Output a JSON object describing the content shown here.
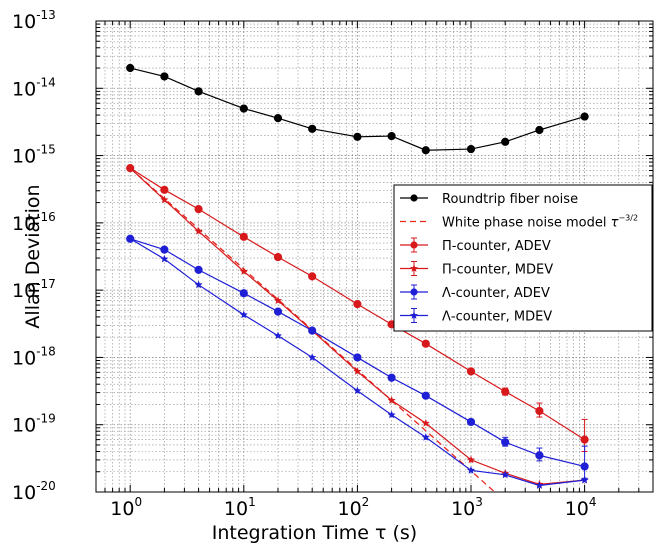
{
  "chart_data": {
    "type": "line",
    "xscale": "log",
    "yscale": "log",
    "xlim": [
      0.5,
      40000
    ],
    "ylim": [
      1e-20,
      1e-13
    ],
    "grid": true,
    "xlabel": "Integration Time τ (s)",
    "ylabel": "Allan Deviation",
    "legend_position": "center-right",
    "x_tick_labels": [
      {
        "value": 1,
        "base": "10",
        "exp": "0"
      },
      {
        "value": 10,
        "base": "10",
        "exp": "1"
      },
      {
        "value": 100,
        "base": "10",
        "exp": "2"
      },
      {
        "value": 1000,
        "base": "10",
        "exp": "3"
      },
      {
        "value": 10000,
        "base": "10",
        "exp": "4"
      }
    ],
    "y_tick_labels": [
      {
        "value": 1e-13,
        "base": "10",
        "exp": "-13"
      },
      {
        "value": 1e-14,
        "base": "10",
        "exp": "-14"
      },
      {
        "value": 1e-15,
        "base": "10",
        "exp": "-15"
      },
      {
        "value": 1e-16,
        "base": "10",
        "exp": "-16"
      },
      {
        "value": 1e-17,
        "base": "10",
        "exp": "-17"
      },
      {
        "value": 1e-18,
        "base": "10",
        "exp": "-18"
      },
      {
        "value": 1e-19,
        "base": "10",
        "exp": "-19"
      },
      {
        "value": 1e-20,
        "base": "10",
        "exp": "-20"
      }
    ],
    "series": [
      {
        "name": "Roundtrip fiber noise",
        "color": "#000000",
        "marker": "circle",
        "line": "solid",
        "x": [
          1,
          2,
          4,
          10,
          20,
          40,
          100,
          200,
          400,
          1000,
          2000,
          4000,
          10000
        ],
        "y": [
          2e-14,
          1.5e-14,
          9e-15,
          5e-15,
          3.6e-15,
          2.5e-15,
          1.9e-15,
          1.95e-15,
          1.2e-15,
          1.25e-15,
          1.6e-15,
          2.4e-15,
          3.8e-15
        ]
      },
      {
        "name": "White phase noise model τ^(-3/2)",
        "label_main": "White phase noise model ",
        "label_math": "τ",
        "label_exp": "−3/2",
        "color": "#e8261c",
        "marker": "none",
        "line": "dashed",
        "x": [
          1,
          10000
        ],
        "y": [
          6.5e-16,
          6.5e-22
        ]
      },
      {
        "name": "Π-counter, ADEV",
        "color": "#d7191c",
        "marker": "circle",
        "line": "solid",
        "x": [
          1,
          2,
          4,
          10,
          20,
          40,
          100,
          200,
          400,
          1000,
          2000,
          4000,
          10000
        ],
        "y": [
          6.5e-16,
          3.1e-16,
          1.6e-16,
          6.2e-17,
          3.1e-17,
          1.6e-17,
          6.2e-18,
          3.1e-18,
          1.6e-18,
          6.2e-19,
          3.1e-19,
          1.6e-19,
          6e-20
        ],
        "err_low": [
          6.5e-16,
          3.1e-16,
          1.6e-16,
          6.2e-17,
          3.1e-17,
          1.6e-17,
          6.2e-18,
          3.1e-18,
          1.6e-18,
          5.9e-19,
          2.75e-19,
          1.3e-19,
          4e-20
        ],
        "err_high": [
          6.5e-16,
          3.1e-16,
          1.6e-16,
          6.2e-17,
          3.1e-17,
          1.6e-17,
          6.2e-18,
          3.1e-18,
          1.6e-18,
          6.5e-19,
          3.5e-19,
          2.1e-19,
          1.2e-19
        ]
      },
      {
        "name": "Π-counter, MDEV",
        "color": "#d7191c",
        "marker": "star",
        "line": "solid",
        "x": [
          1,
          2,
          4,
          10,
          20,
          40,
          100,
          200,
          400,
          1000,
          2000,
          4000,
          10000
        ],
        "y": [
          6.5e-16,
          2.2e-16,
          7.5e-17,
          1.9e-17,
          7e-18,
          2.5e-18,
          6.2e-19,
          2.3e-19,
          1.05e-19,
          3e-20,
          1.9e-20,
          1.3e-20,
          1.5e-20
        ]
      },
      {
        "name": "Λ-counter, ADEV",
        "color": "#1f1fd6",
        "marker": "circle",
        "line": "solid",
        "x": [
          1,
          2,
          4,
          10,
          20,
          40,
          100,
          200,
          400,
          1000,
          2000,
          4000,
          10000
        ],
        "y": [
          5.8e-17,
          4e-17,
          2e-17,
          9e-18,
          4.8e-18,
          2.5e-18,
          1e-18,
          5e-19,
          2.7e-19,
          1.1e-19,
          5.5e-20,
          3.5e-20,
          2.4e-20
        ],
        "err_low": [
          5.8e-17,
          4e-17,
          2e-17,
          9e-18,
          4.8e-18,
          2.5e-18,
          1e-18,
          5e-19,
          2.7e-19,
          1.02e-19,
          4.8e-20,
          2.9e-20,
          1.6e-20
        ],
        "err_high": [
          5.8e-17,
          4e-17,
          2e-17,
          9e-18,
          4.8e-18,
          2.5e-18,
          1e-18,
          5e-19,
          2.7e-19,
          1.18e-19,
          6.5e-20,
          4.5e-20,
          4.8e-20
        ]
      },
      {
        "name": "Λ-counter, MDEV",
        "color": "#1f1fd6",
        "marker": "star",
        "line": "solid",
        "x": [
          1,
          2,
          4,
          10,
          20,
          40,
          100,
          200,
          400,
          1000,
          2000,
          4000,
          10000
        ],
        "y": [
          5.8e-17,
          2.9e-17,
          1.2e-17,
          4.3e-18,
          2.1e-18,
          1e-18,
          3.2e-19,
          1.4e-19,
          6.5e-20,
          2.1e-20,
          1.8e-20,
          1.25e-20,
          1.5e-20
        ]
      }
    ]
  }
}
